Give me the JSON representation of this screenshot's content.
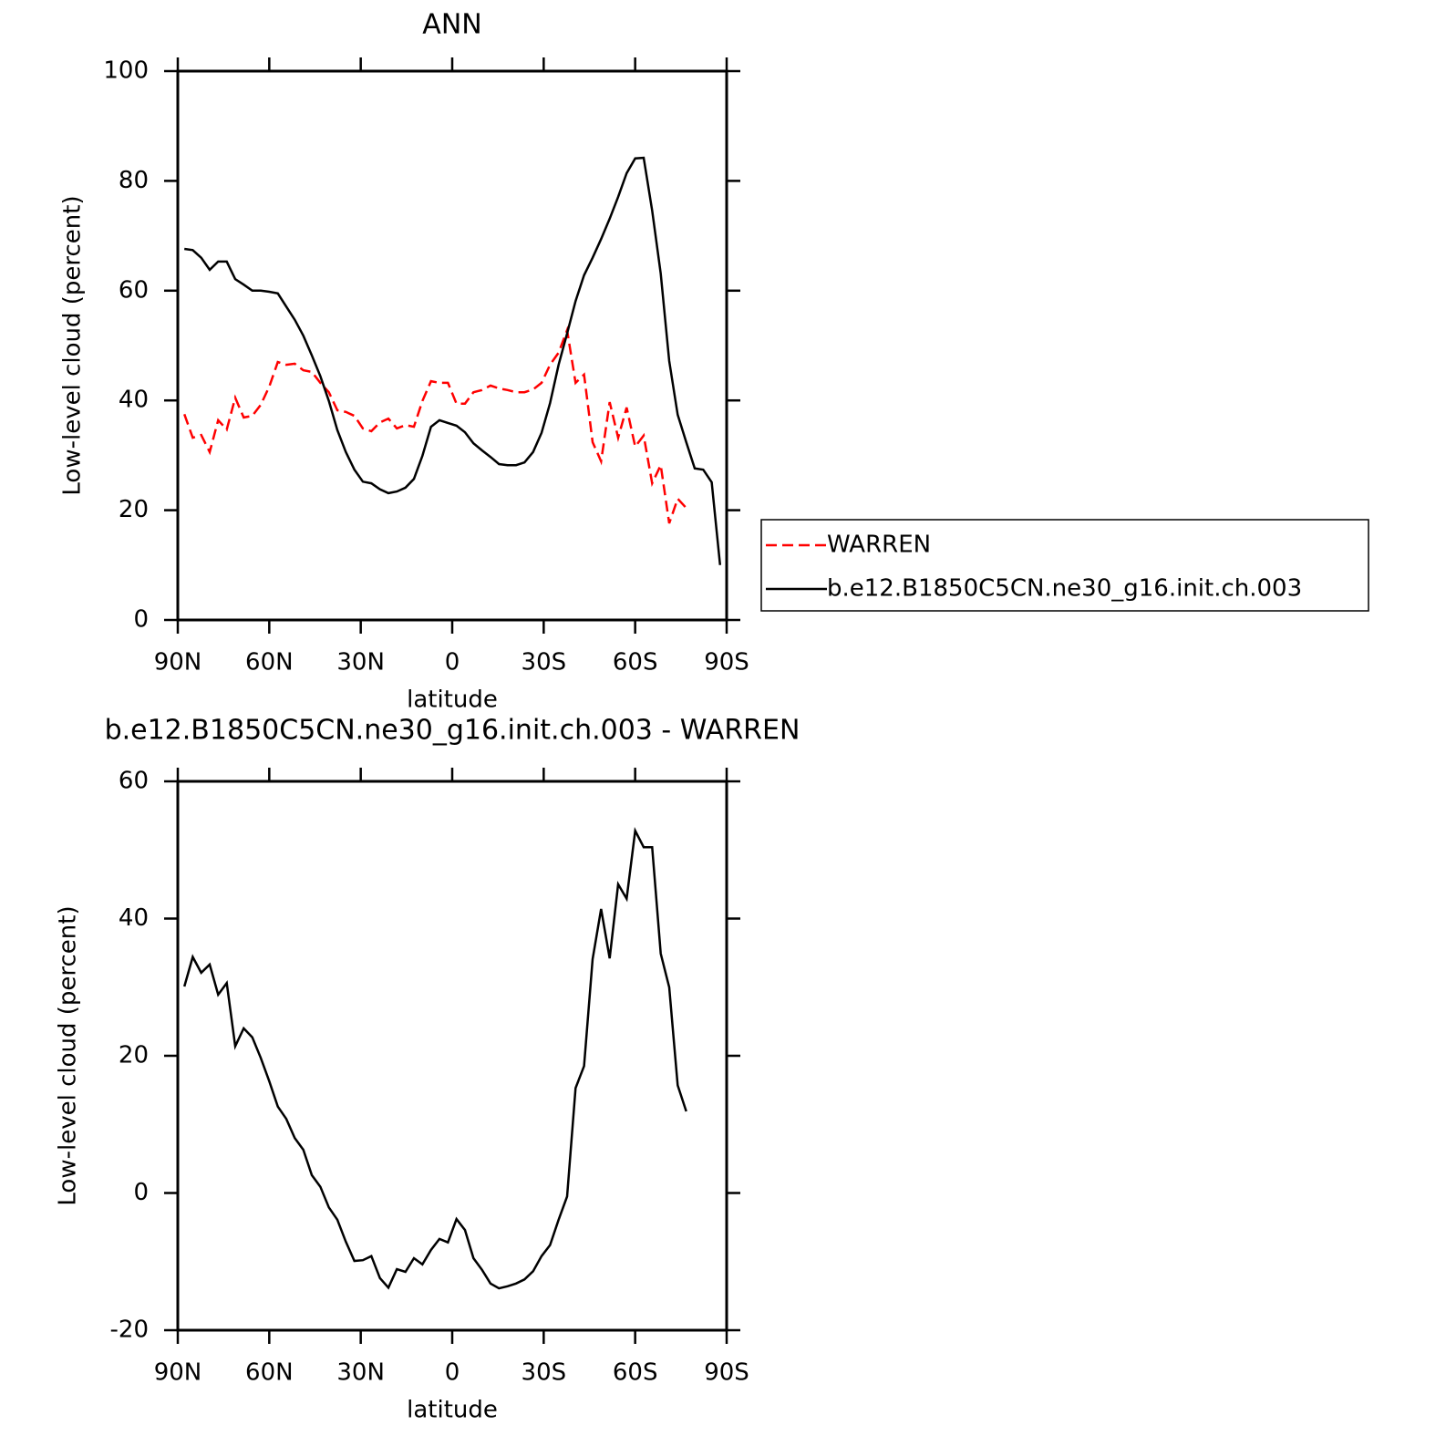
{
  "chart_data": [
    {
      "type": "line",
      "title": "ANN",
      "xlabel": "latitude",
      "ylabel": "Low-level cloud (percent)",
      "x": [
        87.86,
        85.1,
        82.31,
        79.53,
        76.74,
        73.95,
        71.16,
        68.37,
        65.58,
        62.79,
        60,
        57.21,
        54.42,
        51.63,
        48.84,
        46.05,
        43.25,
        40.46,
        37.67,
        34.88,
        32.09,
        29.3,
        26.51,
        23.72,
        20.93,
        18.14,
        15.35,
        12.56,
        9.77,
        6.98,
        4.19,
        1.4,
        -1.4,
        -4.19,
        -6.98,
        -9.77,
        -12.56,
        -15.35,
        -18.14,
        -20.93,
        -23.72,
        -26.51,
        -29.3,
        -32.09,
        -34.88,
        -37.67,
        -40.46,
        -43.25,
        -46.05,
        -48.84,
        -51.63,
        -54.42,
        -57.21,
        -60,
        -62.79,
        -65.58,
        -68.37,
        -71.16,
        -73.95,
        -76.74,
        -79.53,
        -82.31,
        -85.1,
        -87.86
      ],
      "series": [
        {
          "name": "WARREN",
          "color": "#ff0000",
          "dashed": true,
          "values": [
            37.5,
            33.2,
            33.7,
            30.6,
            36.4,
            34.7,
            40.5,
            36.9,
            37.2,
            39.2,
            42.5,
            47.0,
            46.5,
            46.7,
            45.5,
            45.2,
            43.2,
            41.5,
            38.2,
            37.9,
            37.2,
            34.9,
            34.4,
            36.0,
            36.7,
            34.9,
            35.5,
            35.2,
            39.9,
            43.5,
            43.2,
            43.2,
            39.4,
            39.4,
            41.5,
            41.9,
            42.7,
            42.2,
            41.9,
            41.5,
            41.5,
            42.0,
            43.2,
            46.5,
            48.7,
            52.8,
            43.2,
            44.7,
            32.4,
            28.9,
            39.7,
            33.2,
            38.7,
            31.6,
            33.6,
            24.9,
            28.2,
            17.6,
            22.1,
            20.4,
            null,
            null,
            null,
            null
          ]
        },
        {
          "name": "b.e12.B1850C5CN.ne30_g16.init.ch.003",
          "color": "#000000",
          "dashed": false,
          "values": [
            67.6,
            67.4,
            66.0,
            63.8,
            65.3,
            65.3,
            62.1,
            61.1,
            60.0,
            60.0,
            59.8,
            59.5,
            57.1,
            54.7,
            51.8,
            48.2,
            44.4,
            39.9,
            34.6,
            30.6,
            27.4,
            25.2,
            24.9,
            23.8,
            23.1,
            23.4,
            24.1,
            25.7,
            29.9,
            35.2,
            36.4,
            35.9,
            35.4,
            34.2,
            32.2,
            30.9,
            29.7,
            28.4,
            28.2,
            28.2,
            28.7,
            30.6,
            34.1,
            39.5,
            46.5,
            52.2,
            58.1,
            62.8,
            66.0,
            69.4,
            73.1,
            77.1,
            81.4,
            84.1,
            84.2,
            74.6,
            63.1,
            47.2,
            37.4,
            32.4,
            27.6,
            27.4,
            25.1,
            10.0
          ]
        }
      ],
      "xlim": [
        90,
        -90
      ],
      "xticks": [
        {
          "value": 90,
          "label": "90N"
        },
        {
          "value": 60,
          "label": "60N"
        },
        {
          "value": 30,
          "label": "30N"
        },
        0,
        {
          "value": -30,
          "label": "30S"
        },
        {
          "value": -60,
          "label": "60S"
        },
        {
          "value": -90,
          "label": "90S"
        }
      ],
      "ylim": [
        0,
        100
      ],
      "yticks": [
        0,
        20,
        40,
        60,
        80,
        100
      ],
      "legend": "right"
    },
    {
      "type": "line",
      "title": "b.e12.B1850C5CN.ne30_g16.init.ch.003 - WARREN",
      "xlabel": "latitude",
      "ylabel": "Low-level cloud (percent)",
      "x": [
        87.86,
        85.1,
        82.31,
        79.53,
        76.74,
        73.95,
        71.16,
        68.37,
        65.58,
        62.79,
        60,
        57.21,
        54.42,
        51.63,
        48.84,
        46.05,
        43.25,
        40.46,
        37.67,
        34.88,
        32.09,
        29.3,
        26.51,
        23.72,
        20.93,
        18.14,
        15.35,
        12.56,
        9.77,
        6.98,
        4.19,
        1.4,
        -1.4,
        -4.19,
        -6.98,
        -9.77,
        -12.56,
        -15.35,
        -18.14,
        -20.93,
        -23.72,
        -26.51,
        -29.3,
        -32.09,
        -34.88,
        -37.67,
        -40.46,
        -43.25,
        -46.05,
        -48.84,
        -51.63,
        -54.42,
        -57.21,
        -60,
        -62.79,
        -65.58,
        -68.37,
        -71.16,
        -73.95,
        -76.74,
        -79.53,
        -82.31,
        -85.1,
        -87.86
      ],
      "color": "#000000",
      "values": [
        30.1,
        34.4,
        32.1,
        33.3,
        28.9,
        30.6,
        21.4,
        24.0,
        22.7,
        19.7,
        16.3,
        12.6,
        10.8,
        8.0,
        6.3,
        2.6,
        0.9,
        -2.1,
        -3.9,
        -7.1,
        -9.9,
        -9.8,
        -9.2,
        -12.4,
        -13.8,
        -11.1,
        -11.5,
        -9.5,
        -10.4,
        -8.3,
        -6.7,
        -7.2,
        -3.8,
        -5.4,
        -9.5,
        -11.2,
        -13.2,
        -13.9,
        -13.6,
        -13.2,
        -12.6,
        -11.4,
        -9.2,
        -7.6,
        -3.9,
        -0.5,
        15.3,
        18.5,
        34.1,
        41.4,
        34.2,
        45.0,
        42.9,
        52.8,
        50.4,
        50.4,
        34.9,
        30.0,
        15.7,
        11.9,
        null,
        null,
        null,
        null
      ],
      "xlim": [
        90,
        -90
      ],
      "xticks": [
        {
          "value": 90,
          "label": "90N"
        },
        {
          "value": 60,
          "label": "60N"
        },
        {
          "value": 30,
          "label": "30N"
        },
        0,
        {
          "value": -30,
          "label": "30S"
        },
        {
          "value": -60,
          "label": "60S"
        },
        {
          "value": -90,
          "label": "90S"
        }
      ],
      "ylim": [
        -20,
        60
      ],
      "yticks": [
        -20,
        0,
        20,
        40,
        60
      ]
    }
  ]
}
